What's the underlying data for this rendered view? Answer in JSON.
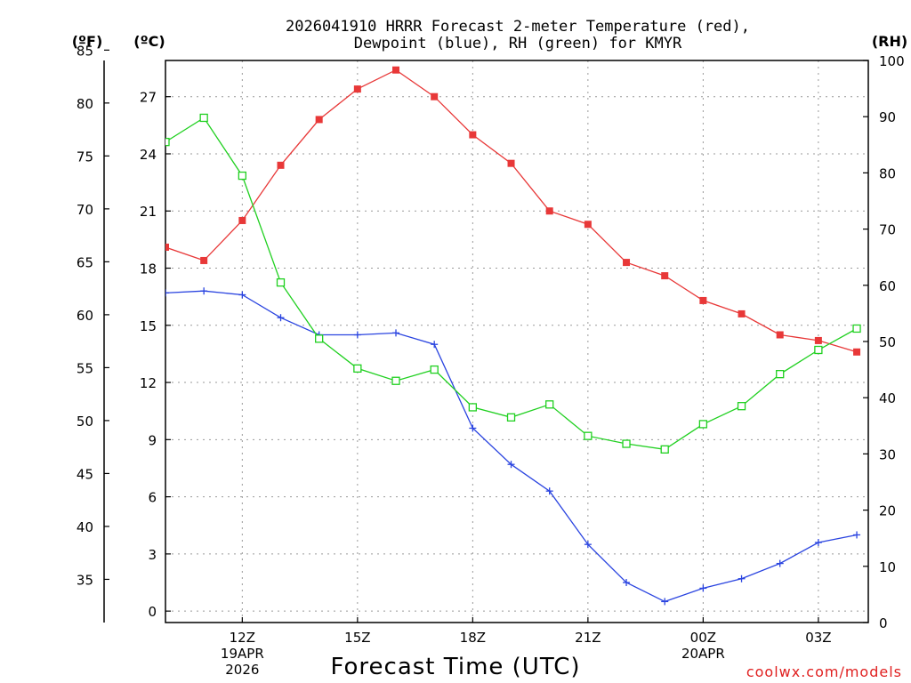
{
  "chart_data": {
    "type": "line",
    "title_line1": "2026041910 HRRR Forecast 2-meter Temperature (red),",
    "title_line2": "Dewpoint (blue), RH (green) for KMYR",
    "xlabel": "Forecast Time (UTC)",
    "credit": "coolwx.com/models",
    "unit_f": "(ºF)",
    "unit_c": "(ºC)",
    "unit_rh": "(RH)",
    "x_hours": [
      10,
      11,
      12,
      13,
      14,
      15,
      16,
      17,
      18,
      19,
      20,
      21,
      22,
      23,
      24,
      25,
      26,
      27,
      28
    ],
    "x_tick_labels": [
      {
        "hour": 12,
        "lines": [
          "12Z",
          "19APR",
          "2026"
        ]
      },
      {
        "hour": 15,
        "lines": [
          "15Z"
        ]
      },
      {
        "hour": 18,
        "lines": [
          "18Z"
        ]
      },
      {
        "hour": 21,
        "lines": [
          "21Z"
        ]
      },
      {
        "hour": 24,
        "lines": [
          "00Z",
          "20APR"
        ]
      },
      {
        "hour": 27,
        "lines": [
          "03Z"
        ]
      }
    ],
    "c_axis": {
      "range": [
        -0.6,
        28.9
      ],
      "ticks": [
        0,
        3,
        6,
        9,
        12,
        15,
        18,
        21,
        24,
        27
      ]
    },
    "f_axis": {
      "ticks": [
        35,
        40,
        45,
        50,
        55,
        60,
        65,
        70,
        75,
        80,
        85
      ]
    },
    "rh_axis": {
      "range": [
        0,
        100
      ],
      "ticks": [
        0,
        10,
        20,
        30,
        40,
        50,
        60,
        70,
        80,
        90,
        100
      ]
    },
    "series": [
      {
        "name": "Temperature",
        "unit": "C",
        "color": "#e83838",
        "marker": "filled-square",
        "values": [
          19.1,
          18.4,
          20.5,
          23.4,
          25.8,
          27.4,
          28.4,
          27.0,
          25.0,
          23.5,
          21.0,
          20.3,
          18.3,
          17.6,
          16.3,
          15.6,
          14.5,
          14.2,
          13.6
        ]
      },
      {
        "name": "Dewpoint",
        "unit": "C",
        "color": "#2a44e0",
        "marker": "plus",
        "values": [
          16.7,
          16.8,
          16.6,
          15.4,
          14.5,
          14.5,
          14.6,
          14.0,
          9.6,
          7.7,
          6.3,
          3.5,
          1.5,
          0.5,
          1.2,
          1.7,
          2.5,
          3.6,
          4.0
        ]
      },
      {
        "name": "RH",
        "unit": "%",
        "color": "#20d020",
        "marker": "open-square",
        "values": [
          85.5,
          89.8,
          79.5,
          60.5,
          50.5,
          45.2,
          43.0,
          45.0,
          38.3,
          36.5,
          38.8,
          33.2,
          31.8,
          30.8,
          35.3,
          38.5,
          44.2,
          48.5,
          52.3
        ]
      }
    ]
  }
}
